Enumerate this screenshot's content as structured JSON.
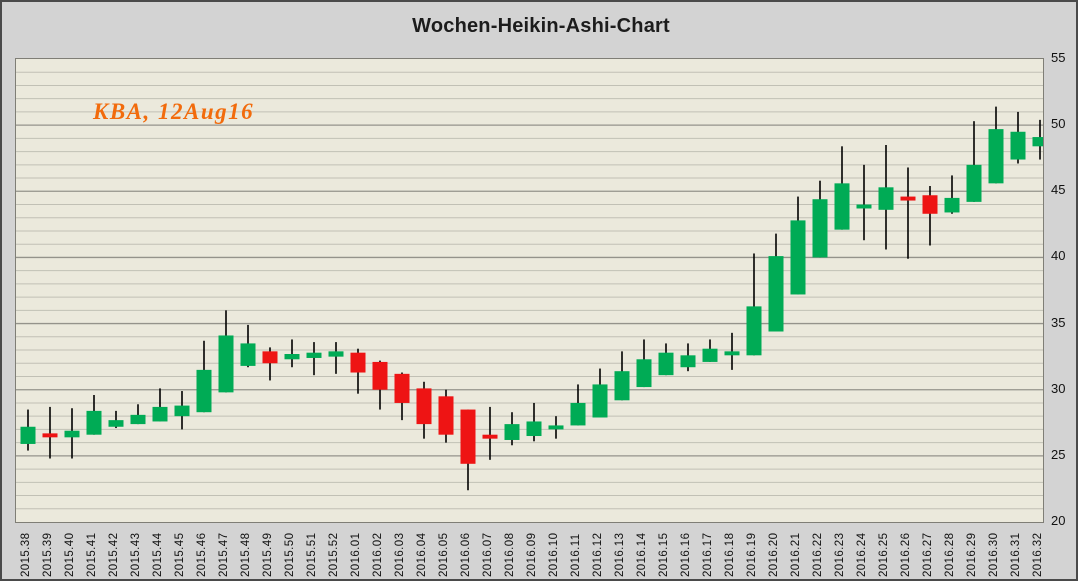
{
  "chart_data": {
    "type": "candlestick",
    "title": "Wochen-Heikin-Ashi-Chart",
    "annotation": {
      "text": "KBA, 12Aug16",
      "color": "#f26b0c"
    },
    "timeframe": "weekly",
    "ylim": [
      20,
      55
    ],
    "y_ticks": [
      20,
      25,
      30,
      35,
      40,
      45,
      50,
      55
    ],
    "y_axis_side": "right",
    "x_label_rotation": -90,
    "grid": {
      "minor_step": 1,
      "major_step": 5,
      "minor_on": true
    },
    "legend": "none",
    "colors": {
      "up": "#00ab55",
      "down": "#ee1414",
      "wick": "#000000",
      "plot_bg": "#ebe9dc",
      "outer_bg": "#d3d3d3",
      "grid_minor": "#c1c0b5",
      "grid_major": "#94938b",
      "plot_border": "#7f7e76",
      "title_color": "#1c1c1c"
    },
    "candles": [
      {
        "t": "2015.38",
        "o": 25.9,
        "h": 28.5,
        "l": 25.4,
        "c": 27.2
      },
      {
        "t": "2015.39",
        "o": 26.7,
        "h": 28.7,
        "l": 24.8,
        "c": 26.4
      },
      {
        "t": "2015.40",
        "o": 26.4,
        "h": 28.6,
        "l": 24.8,
        "c": 26.9
      },
      {
        "t": "2015.41",
        "o": 26.6,
        "h": 29.6,
        "l": 26.6,
        "c": 28.4
      },
      {
        "t": "2015.42",
        "o": 27.2,
        "h": 28.4,
        "l": 27.1,
        "c": 27.7
      },
      {
        "t": "2015.43",
        "o": 27.4,
        "h": 28.9,
        "l": 27.4,
        "c": 28.1
      },
      {
        "t": "2015.44",
        "o": 27.6,
        "h": 30.1,
        "l": 27.6,
        "c": 28.7
      },
      {
        "t": "2015.45",
        "o": 28.0,
        "h": 29.9,
        "l": 27.0,
        "c": 28.8
      },
      {
        "t": "2015.46",
        "o": 28.3,
        "h": 33.7,
        "l": 28.3,
        "c": 31.5
      },
      {
        "t": "2015.47",
        "o": 29.8,
        "h": 36.0,
        "l": 29.8,
        "c": 34.1
      },
      {
        "t": "2015.48",
        "o": 31.8,
        "h": 34.9,
        "l": 31.7,
        "c": 33.5
      },
      {
        "t": "2015.49",
        "o": 32.9,
        "h": 33.2,
        "l": 30.7,
        "c": 32.0
      },
      {
        "t": "2015.50",
        "o": 32.3,
        "h": 33.8,
        "l": 31.7,
        "c": 32.7
      },
      {
        "t": "2015.51",
        "o": 32.4,
        "h": 33.6,
        "l": 31.1,
        "c": 32.8
      },
      {
        "t": "2015.52",
        "o": 32.5,
        "h": 33.6,
        "l": 31.2,
        "c": 32.9
      },
      {
        "t": "2016.01",
        "o": 32.8,
        "h": 33.1,
        "l": 29.7,
        "c": 31.3
      },
      {
        "t": "2016.02",
        "o": 32.1,
        "h": 32.2,
        "l": 28.5,
        "c": 30.0
      },
      {
        "t": "2016.03",
        "o": 31.2,
        "h": 31.3,
        "l": 27.7,
        "c": 29.0
      },
      {
        "t": "2016.04",
        "o": 30.1,
        "h": 30.6,
        "l": 26.3,
        "c": 27.4
      },
      {
        "t": "2016.05",
        "o": 29.5,
        "h": 30.0,
        "l": 26.0,
        "c": 26.6
      },
      {
        "t": "2016.06",
        "o": 28.5,
        "h": 28.5,
        "l": 22.4,
        "c": 24.4
      },
      {
        "t": "2016.07",
        "o": 26.6,
        "h": 28.7,
        "l": 24.7,
        "c": 26.3
      },
      {
        "t": "2016.08",
        "o": 26.2,
        "h": 28.3,
        "l": 25.8,
        "c": 27.4
      },
      {
        "t": "2016.09",
        "o": 26.5,
        "h": 29.0,
        "l": 26.1,
        "c": 27.6
      },
      {
        "t": "2016.10",
        "o": 27.0,
        "h": 28.0,
        "l": 26.3,
        "c": 27.3
      },
      {
        "t": "2016.11",
        "o": 27.3,
        "h": 30.4,
        "l": 27.3,
        "c": 29.0
      },
      {
        "t": "2016.12",
        "o": 27.9,
        "h": 31.6,
        "l": 27.9,
        "c": 30.4
      },
      {
        "t": "2016.13",
        "o": 29.2,
        "h": 32.9,
        "l": 29.2,
        "c": 31.4
      },
      {
        "t": "2016.14",
        "o": 30.2,
        "h": 33.8,
        "l": 30.2,
        "c": 32.3
      },
      {
        "t": "2016.15",
        "o": 31.1,
        "h": 33.5,
        "l": 31.1,
        "c": 32.8
      },
      {
        "t": "2016.16",
        "o": 31.7,
        "h": 33.5,
        "l": 31.4,
        "c": 32.6
      },
      {
        "t": "2016.17",
        "o": 32.1,
        "h": 33.8,
        "l": 32.1,
        "c": 33.1
      },
      {
        "t": "2016.18",
        "o": 32.6,
        "h": 34.3,
        "l": 31.5,
        "c": 32.9
      },
      {
        "t": "2016.19",
        "o": 32.6,
        "h": 40.3,
        "l": 32.6,
        "c": 36.3
      },
      {
        "t": "2016.20",
        "o": 34.4,
        "h": 41.8,
        "l": 34.4,
        "c": 40.1
      },
      {
        "t": "2016.21",
        "o": 37.2,
        "h": 44.6,
        "l": 37.2,
        "c": 42.8
      },
      {
        "t": "2016.22",
        "o": 40.0,
        "h": 45.8,
        "l": 40.0,
        "c": 44.4
      },
      {
        "t": "2016.23",
        "o": 42.1,
        "h": 48.4,
        "l": 42.1,
        "c": 45.6
      },
      {
        "t": "2016.24",
        "o": 43.7,
        "h": 47.0,
        "l": 41.3,
        "c": 44.0
      },
      {
        "t": "2016.25",
        "o": 43.6,
        "h": 48.5,
        "l": 40.6,
        "c": 45.3
      },
      {
        "t": "2016.26",
        "o": 44.6,
        "h": 46.8,
        "l": 39.9,
        "c": 44.3
      },
      {
        "t": "2016.27",
        "o": 44.7,
        "h": 45.4,
        "l": 40.9,
        "c": 43.3
      },
      {
        "t": "2016.28",
        "o": 43.4,
        "h": 46.2,
        "l": 43.3,
        "c": 44.5
      },
      {
        "t": "2016.29",
        "o": 44.2,
        "h": 50.3,
        "l": 44.2,
        "c": 47.0
      },
      {
        "t": "2016.30",
        "o": 45.6,
        "h": 51.4,
        "l": 45.6,
        "c": 49.7
      },
      {
        "t": "2016.31",
        "o": 47.4,
        "h": 51.0,
        "l": 47.1,
        "c": 49.5
      },
      {
        "t": "2016.32",
        "o": 48.4,
        "h": 50.4,
        "l": 47.4,
        "c": 49.1
      }
    ]
  }
}
